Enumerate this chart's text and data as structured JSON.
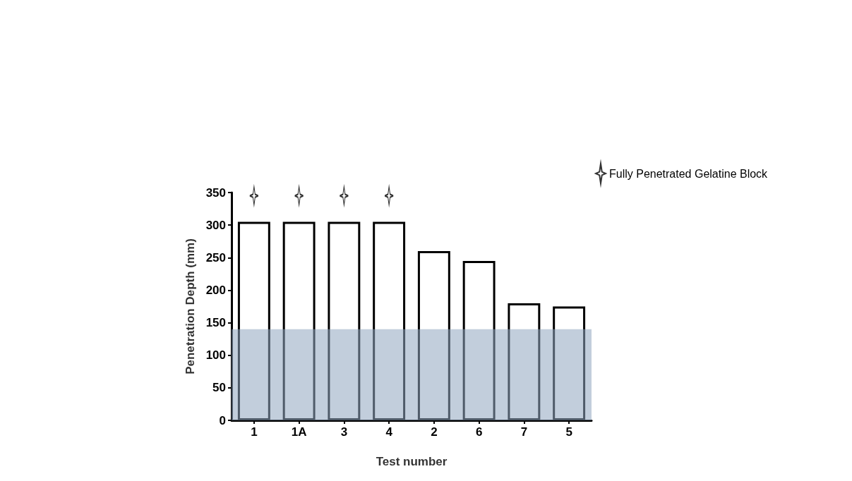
{
  "chart_data": {
    "type": "bar",
    "xlabel": "Test number",
    "ylabel": "Penetration Depth (mm)",
    "categories": [
      "1",
      "1A",
      "3",
      "4",
      "2",
      "6",
      "7",
      "5"
    ],
    "series": [
      {
        "color": "#ffffff",
        "values": [
          305,
          305,
          305,
          305,
          260,
          245,
          180,
          175
        ]
      },
      {
        "type": "scatter",
        "name": "Fully Penetrated Gelatine Block",
        "color": "#000000",
        "x": [
          "1",
          "1A",
          "3",
          "4"
        ],
        "values": [
          345,
          345,
          345,
          345
        ]
      }
    ],
    "bands": [
      {
        "axis": "y",
        "from": 0,
        "to": 140,
        "color": "#8fa6bf"
      }
    ],
    "ylim": [
      0,
      350
    ],
    "yticks": [
      0,
      50,
      100,
      150,
      200,
      250,
      300,
      350
    ],
    "grid": false,
    "legend": "top right",
    "marker": "star"
  }
}
